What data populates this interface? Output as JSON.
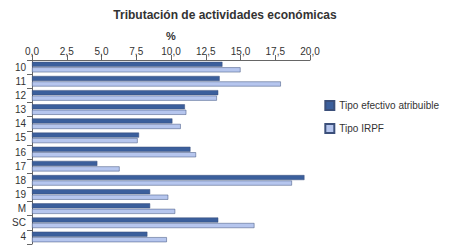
{
  "chart_data": {
    "type": "bar",
    "orientation": "horizontal",
    "title": "Tributación de actividades económicas",
    "x_label": "%",
    "categories": [
      "10",
      "11",
      "12",
      "13",
      "14",
      "15",
      "16",
      "17",
      "18",
      "19",
      "M",
      "SC",
      "4"
    ],
    "series": [
      {
        "name": "Tipo efectivo atribuible",
        "color": "#3b5f9c",
        "values": [
          13.7,
          13.5,
          13.4,
          11.0,
          10.1,
          7.7,
          11.4,
          4.7,
          19.6,
          8.5,
          8.5,
          13.4,
          8.3
        ]
      },
      {
        "name": "Tipo IRPF",
        "color": "#b6c6ee",
        "values": [
          15.0,
          17.9,
          13.3,
          11.1,
          10.7,
          7.6,
          11.8,
          6.3,
          18.7,
          9.8,
          10.3,
          16.0,
          9.7
        ]
      }
    ],
    "xlim": [
      0,
      20
    ],
    "xticks": [
      {
        "value": 0,
        "label": "0,0"
      },
      {
        "value": 2.5,
        "label": "2,5"
      },
      {
        "value": 5,
        "label": "5,0"
      },
      {
        "value": 7.5,
        "label": "7,5"
      },
      {
        "value": 10,
        "label": "10,0"
      },
      {
        "value": 12.5,
        "label": "12,5"
      },
      {
        "value": 15,
        "label": "15,0"
      },
      {
        "value": 17.5,
        "label": "17,5"
      },
      {
        "value": 20,
        "label": "20,0"
      }
    ],
    "grid": false,
    "legend": "right"
  }
}
